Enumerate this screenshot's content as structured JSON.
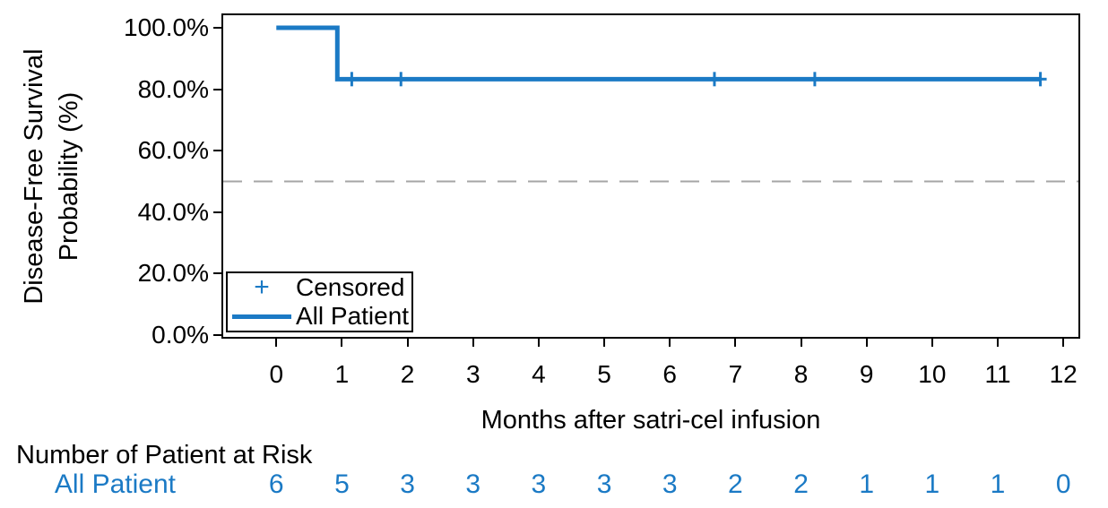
{
  "figure": {
    "y_axis": {
      "title_line1": "Disease-Free Survival",
      "title_line2": "Probability (%)",
      "tick_labels": [
        "0.0%",
        "20.0%",
        "40.0%",
        "60.0%",
        "80.0%",
        "100.0%"
      ],
      "tick_values": [
        0,
        20,
        40,
        60,
        80,
        100
      ]
    },
    "x_axis": {
      "title": "Months after satri-cel infusion",
      "tick_labels": [
        "0",
        "1",
        "2",
        "3",
        "4",
        "5",
        "6",
        "7",
        "8",
        "9",
        "10",
        "11",
        "12"
      ],
      "tick_values": [
        0,
        1,
        2,
        3,
        4,
        5,
        6,
        7,
        8,
        9,
        10,
        11,
        12
      ]
    },
    "legend": {
      "censored_marker": "+",
      "censored_label": "Censored",
      "series_label": "All Patient"
    },
    "risk_table": {
      "header": "Number of Patient at Risk",
      "row_label": "All Patient",
      "values": [
        "6",
        "5",
        "3",
        "3",
        "3",
        "3",
        "3",
        "2",
        "2",
        "1",
        "1",
        "1",
        "0"
      ]
    },
    "colors": {
      "series": "#1b7ac5",
      "reference_line": "#a6a6a6",
      "axis": "#000000",
      "risk_text": "#1b7ac5"
    }
  },
  "chart_data": {
    "type": "line",
    "subtype": "kaplan-meier-step-curve",
    "title": "",
    "xlabel": "Months after satri-cel infusion",
    "ylabel": "Disease-Free Survival Probability (%)",
    "xlim": [
      -0.81,
      12.23
    ],
    "ylim": [
      -0.6,
      104.1
    ],
    "x_ticks": [
      0,
      1,
      2,
      3,
      4,
      5,
      6,
      7,
      8,
      9,
      10,
      11,
      12
    ],
    "y_ticks_percent": [
      0,
      20,
      40,
      60,
      80,
      100
    ],
    "grid": false,
    "legend_position": "inside-bottom-left",
    "series": [
      {
        "name": "All Patient",
        "color": "#1b7ac5",
        "step_points": [
          [
            0,
            100
          ],
          [
            0.93,
            100
          ],
          [
            0.93,
            83.3
          ],
          [
            11.65,
            83.3
          ]
        ],
        "events": [
          {
            "x": 0.93,
            "drop_from": 100,
            "drop_to": 83.3
          }
        ],
        "censored_x": [
          1.15,
          1.9,
          6.68,
          8.21,
          11.65
        ],
        "censored_y": 83.3
      }
    ],
    "reference_line": {
      "y": 50,
      "style": "dashed",
      "color": "#a6a6a6"
    },
    "number_at_risk": {
      "label": "All Patient",
      "x": [
        0,
        1,
        2,
        3,
        4,
        5,
        6,
        7,
        8,
        9,
        10,
        11,
        12
      ],
      "values": [
        6,
        5,
        3,
        3,
        3,
        3,
        3,
        2,
        2,
        1,
        1,
        1,
        0
      ]
    }
  }
}
